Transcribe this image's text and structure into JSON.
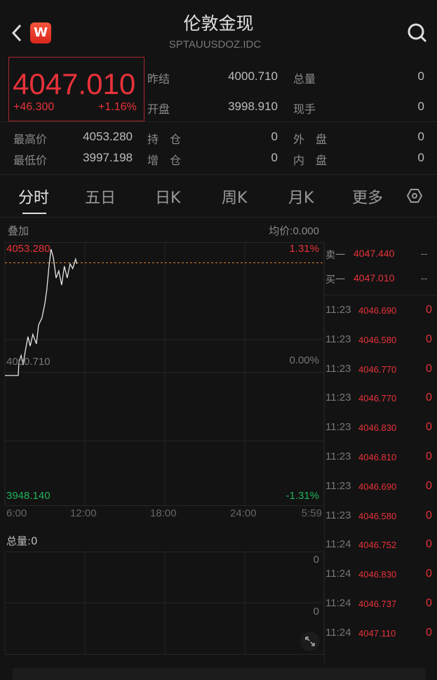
{
  "header": {
    "title": "伦敦金现",
    "code": "SPTAUUSDOZ.IDC",
    "back_icon": "chevron-left-icon",
    "logo_letter": "W",
    "search_icon": "search-icon"
  },
  "quote": {
    "price": "4047.010",
    "change": "+46.300",
    "change_pct": "+1.16%",
    "stats": [
      {
        "label": "昨结",
        "value": "4000.710"
      },
      {
        "label": "总量",
        "value": "0"
      },
      {
        "label": "开盘",
        "value": "3998.910"
      },
      {
        "label": "现手",
        "value": "0"
      },
      {
        "label": "最高价",
        "value": "4053.280"
      },
      {
        "label": "持　仓",
        "value": "0"
      },
      {
        "label": "外　盘",
        "value": "0"
      },
      {
        "label": "最低价",
        "value": "3997.198"
      },
      {
        "label": "增　仓",
        "value": "0"
      },
      {
        "label": "内　盘",
        "value": "0"
      }
    ]
  },
  "tabs": [
    {
      "label": "分时",
      "active": true
    },
    {
      "label": "五日"
    },
    {
      "label": "日K"
    },
    {
      "label": "周K"
    },
    {
      "label": "月K"
    },
    {
      "label": "更多"
    }
  ],
  "settings_icon": "hexagon-settings-icon",
  "chart_header": {
    "overlay": "叠加",
    "avg_price": "均价:0.000"
  },
  "chart_data": {
    "type": "line",
    "y_labels": {
      "top": "4053.280",
      "mid": "4000.710",
      "bottom": "3948.140",
      "top_pct": "1.31%",
      "mid_pct": "0.00%",
      "bottom_pct": "-1.31%"
    },
    "ylim": [
      3948.14,
      4053.28
    ],
    "x_ticks": [
      "6:00",
      "12:00",
      "18:00",
      "24:00",
      "5:59"
    ],
    "points": [
      [
        "6:00",
        3999.5
      ],
      [
        "7:00",
        3999.5
      ],
      [
        "7:03",
        4005
      ],
      [
        "7:13",
        4008
      ],
      [
        "7:22",
        4004
      ],
      [
        "7:32",
        4010
      ],
      [
        "7:44",
        4016
      ],
      [
        "7:54",
        4012
      ],
      [
        "8:06",
        4017
      ],
      [
        "8:22",
        4013
      ],
      [
        "8:32",
        4021
      ],
      [
        "8:47",
        4024
      ],
      [
        "9:00",
        4030
      ],
      [
        "9:09",
        4036
      ],
      [
        "9:19",
        4046
      ],
      [
        "9:28",
        4053.28
      ],
      [
        "9:38",
        4050
      ],
      [
        "9:51",
        4041
      ],
      [
        "10:03",
        4044
      ],
      [
        "10:16",
        4038
      ],
      [
        "10:28",
        4046
      ],
      [
        "10:41",
        4041
      ],
      [
        "10:54",
        4047
      ],
      [
        "11:06",
        4045
      ],
      [
        "11:19",
        4049
      ],
      [
        "11:24",
        4047.01
      ]
    ],
    "grid": true,
    "colors": {
      "line": "#e6e6e6",
      "dashed": "#d9822b",
      "up": "#e8323a",
      "down": "#1fb35a"
    }
  },
  "volume": {
    "label": "总量:0",
    "top": "0",
    "mid": "0",
    "expand_icon": "expand-icon"
  },
  "orderbook": {
    "asks": [
      {
        "label": "卖一",
        "price": "4047.440",
        "vol": "--"
      }
    ],
    "bids": [
      {
        "label": "买一",
        "price": "4047.010",
        "vol": "--"
      }
    ]
  },
  "ticks": [
    {
      "time": "11:23",
      "price": "4046.690",
      "vol": "0"
    },
    {
      "time": "11:23",
      "price": "4046.580",
      "vol": "0"
    },
    {
      "time": "11:23",
      "price": "4046.770",
      "vol": "0"
    },
    {
      "time": "11:23",
      "price": "4046.770",
      "vol": "0"
    },
    {
      "time": "11:23",
      "price": "4046.830",
      "vol": "0"
    },
    {
      "time": "11:23",
      "price": "4046.810",
      "vol": "0"
    },
    {
      "time": "11:23",
      "price": "4046.690",
      "vol": "0"
    },
    {
      "time": "11:23",
      "price": "4046.580",
      "vol": "0"
    },
    {
      "time": "11:24",
      "price": "4046.752",
      "vol": "0"
    },
    {
      "time": "11:24",
      "price": "4046.830",
      "vol": "0"
    },
    {
      "time": "11:24",
      "price": "4046.737",
      "vol": "0"
    },
    {
      "time": "11:24",
      "price": "4047.110",
      "vol": "0"
    }
  ]
}
